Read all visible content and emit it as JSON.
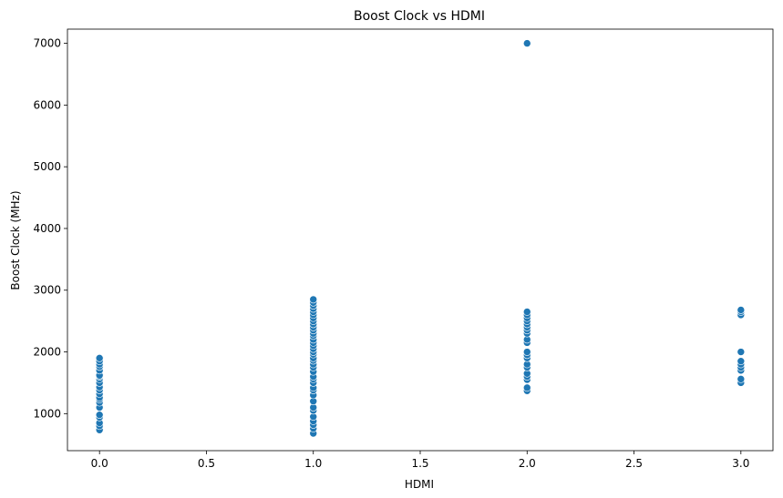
{
  "chart_data": {
    "type": "scatter",
    "title": "Boost Clock vs HDMI",
    "xlabel": "HDMI",
    "ylabel": "Boost Clock (MHz)",
    "xlim": [
      -0.15,
      3.15
    ],
    "ylim": [
      400,
      7230
    ],
    "xticks": [
      0.0,
      0.5,
      1.0,
      1.5,
      2.0,
      2.5,
      3.0
    ],
    "xtick_labels": [
      "0.0",
      "0.5",
      "1.0",
      "1.5",
      "2.0",
      "2.5",
      "3.0"
    ],
    "yticks": [
      1000,
      2000,
      3000,
      4000,
      5000,
      6000,
      7000
    ],
    "ytick_labels": [
      "1000",
      "2000",
      "3000",
      "4000",
      "5000",
      "6000",
      "7000"
    ],
    "grid": false,
    "marker_color": "#1f77b4",
    "points": [
      {
        "x": 0,
        "y": 735
      },
      {
        "x": 0,
        "y": 800
      },
      {
        "x": 0,
        "y": 850
      },
      {
        "x": 0,
        "y": 940
      },
      {
        "x": 0,
        "y": 980
      },
      {
        "x": 0,
        "y": 1100
      },
      {
        "x": 0,
        "y": 1180
      },
      {
        "x": 0,
        "y": 1230
      },
      {
        "x": 0,
        "y": 1260
      },
      {
        "x": 0,
        "y": 1320
      },
      {
        "x": 0,
        "y": 1380
      },
      {
        "x": 0,
        "y": 1430
      },
      {
        "x": 0,
        "y": 1500
      },
      {
        "x": 0,
        "y": 1560
      },
      {
        "x": 0,
        "y": 1600
      },
      {
        "x": 0,
        "y": 1620
      },
      {
        "x": 0,
        "y": 1700
      },
      {
        "x": 0,
        "y": 1760
      },
      {
        "x": 0,
        "y": 1800
      },
      {
        "x": 0,
        "y": 1850
      },
      {
        "x": 0,
        "y": 1900
      },
      {
        "x": 1,
        "y": 680
      },
      {
        "x": 1,
        "y": 760
      },
      {
        "x": 1,
        "y": 820
      },
      {
        "x": 1,
        "y": 880
      },
      {
        "x": 1,
        "y": 950
      },
      {
        "x": 1,
        "y": 1050
      },
      {
        "x": 1,
        "y": 1100
      },
      {
        "x": 1,
        "y": 1200
      },
      {
        "x": 1,
        "y": 1300
      },
      {
        "x": 1,
        "y": 1380
      },
      {
        "x": 1,
        "y": 1420
      },
      {
        "x": 1,
        "y": 1500
      },
      {
        "x": 1,
        "y": 1560
      },
      {
        "x": 1,
        "y": 1600
      },
      {
        "x": 1,
        "y": 1680
      },
      {
        "x": 1,
        "y": 1750
      },
      {
        "x": 1,
        "y": 1800
      },
      {
        "x": 1,
        "y": 1860
      },
      {
        "x": 1,
        "y": 1900
      },
      {
        "x": 1,
        "y": 1960
      },
      {
        "x": 1,
        "y": 2000
      },
      {
        "x": 1,
        "y": 2050
      },
      {
        "x": 1,
        "y": 2100
      },
      {
        "x": 1,
        "y": 2150
      },
      {
        "x": 1,
        "y": 2200
      },
      {
        "x": 1,
        "y": 2260
      },
      {
        "x": 1,
        "y": 2300
      },
      {
        "x": 1,
        "y": 2350
      },
      {
        "x": 1,
        "y": 2400
      },
      {
        "x": 1,
        "y": 2450
      },
      {
        "x": 1,
        "y": 2500
      },
      {
        "x": 1,
        "y": 2550
      },
      {
        "x": 1,
        "y": 2600
      },
      {
        "x": 1,
        "y": 2650
      },
      {
        "x": 1,
        "y": 2700
      },
      {
        "x": 1,
        "y": 2750
      },
      {
        "x": 1,
        "y": 2800
      },
      {
        "x": 1,
        "y": 2850
      },
      {
        "x": 2,
        "y": 1370
      },
      {
        "x": 2,
        "y": 1420
      },
      {
        "x": 2,
        "y": 1550
      },
      {
        "x": 2,
        "y": 1600
      },
      {
        "x": 2,
        "y": 1650
      },
      {
        "x": 2,
        "y": 1750
      },
      {
        "x": 2,
        "y": 1800
      },
      {
        "x": 2,
        "y": 1900
      },
      {
        "x": 2,
        "y": 1950
      },
      {
        "x": 2,
        "y": 2000
      },
      {
        "x": 2,
        "y": 2150
      },
      {
        "x": 2,
        "y": 2200
      },
      {
        "x": 2,
        "y": 2300
      },
      {
        "x": 2,
        "y": 2350
      },
      {
        "x": 2,
        "y": 2400
      },
      {
        "x": 2,
        "y": 2450
      },
      {
        "x": 2,
        "y": 2500
      },
      {
        "x": 2,
        "y": 2550
      },
      {
        "x": 2,
        "y": 2600
      },
      {
        "x": 2,
        "y": 2650
      },
      {
        "x": 2,
        "y": 7000
      },
      {
        "x": 3,
        "y": 1500
      },
      {
        "x": 3,
        "y": 1560
      },
      {
        "x": 3,
        "y": 1700
      },
      {
        "x": 3,
        "y": 1750
      },
      {
        "x": 3,
        "y": 1800
      },
      {
        "x": 3,
        "y": 1850
      },
      {
        "x": 3,
        "y": 2000
      },
      {
        "x": 3,
        "y": 2600
      },
      {
        "x": 3,
        "y": 2650
      },
      {
        "x": 3,
        "y": 2680
      }
    ]
  }
}
